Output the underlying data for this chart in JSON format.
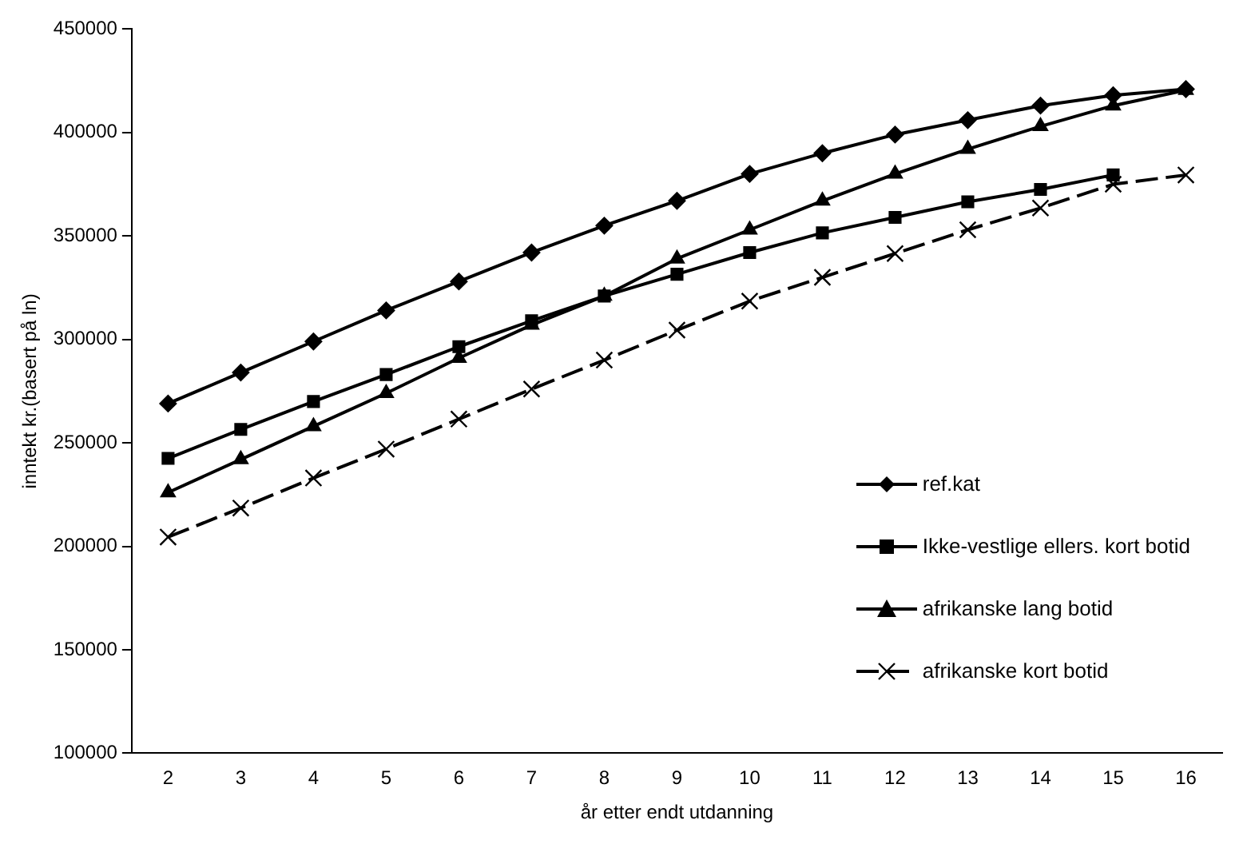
{
  "chart_data": {
    "type": "line",
    "xlabel": "år etter endt utdanning",
    "ylabel": "inntekt kr.(basert på ln)",
    "categories": [
      "2",
      "3",
      "4",
      "5",
      "6",
      "7",
      "8",
      "9",
      "10",
      "11",
      "12",
      "13",
      "14",
      "15",
      "16"
    ],
    "ylim": [
      100000,
      450000
    ],
    "yticks": [
      100000,
      150000,
      200000,
      250000,
      300000,
      350000,
      400000,
      450000
    ],
    "grid": false,
    "legend": "bottom right",
    "series": [
      {
        "name": "ref.kat",
        "color": "#000000",
        "marker": "diamond",
        "line_style": "solid",
        "values": [
          269000,
          284000,
          299000,
          314000,
          328000,
          342000,
          355000,
          367000,
          380000,
          390000,
          399000,
          406000,
          413000,
          418000,
          421000
        ]
      },
      {
        "name": "Ikke-vestlige ellers. kort botid",
        "color": "#000000",
        "marker": "square",
        "line_style": "solid",
        "values": [
          242500,
          256500,
          270000,
          283000,
          296500,
          309000,
          321000,
          331500,
          342000,
          351500,
          359000,
          366500,
          372500,
          379500,
          null
        ]
      },
      {
        "name": "afrikanske lang botid",
        "color": "#000000",
        "marker": "triangle",
        "line_style": "solid",
        "values": [
          226000,
          242000,
          258000,
          274000,
          291000,
          307000,
          321000,
          339000,
          353000,
          367000,
          380000,
          392000,
          403000,
          413000,
          420500
        ]
      },
      {
        "name": "afrikanske kort botid",
        "color": "#000000",
        "marker": "cross",
        "line_style": "dashed",
        "values": [
          204500,
          218500,
          233000,
          247000,
          261500,
          276000,
          290000,
          304500,
          318500,
          330000,
          341500,
          353000,
          363500,
          375000,
          379500
        ]
      }
    ]
  }
}
